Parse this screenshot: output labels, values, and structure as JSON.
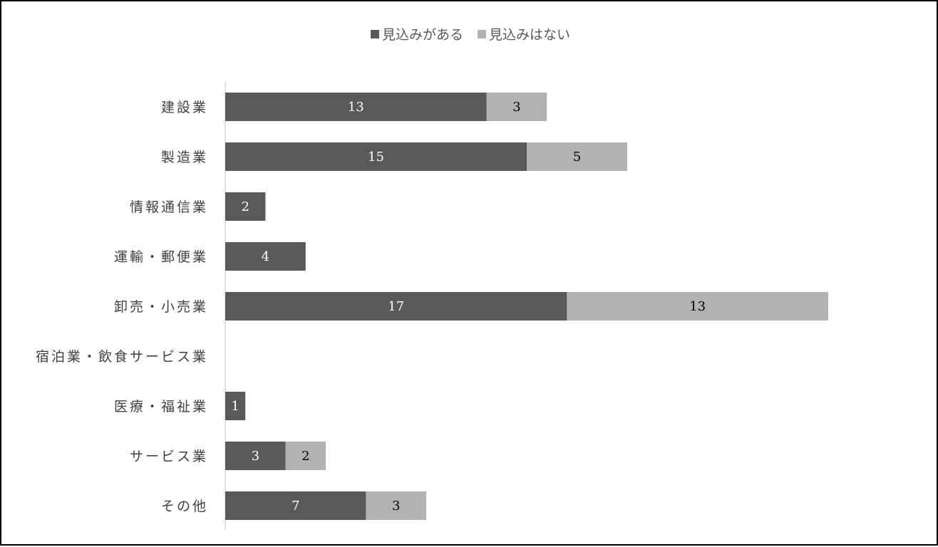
{
  "chart_data": {
    "type": "bar",
    "orientation": "horizontal",
    "stacked": true,
    "categories": [
      "建設業",
      "製造業",
      "情報通信業",
      "運輸・郵便業",
      "卸売・小売業",
      "宿泊業・飲食サービス業",
      "医療・福祉業",
      "サービス業",
      "その他"
    ],
    "series": [
      {
        "name": "見込みがある",
        "values": [
          13,
          15,
          2,
          4,
          17,
          0,
          1,
          3,
          7
        ],
        "color": "#595959",
        "label_color": "#ffffff"
      },
      {
        "name": "見込みはない",
        "values": [
          3,
          5,
          0,
          0,
          13,
          0,
          0,
          2,
          3
        ],
        "color": "#b2b2b2",
        "label_color": "#000000"
      }
    ],
    "xlim": [
      0,
      30
    ],
    "grid": false,
    "legend": "top-center",
    "data_labels": true,
    "title": "",
    "xlabel": "",
    "ylabel": ""
  }
}
